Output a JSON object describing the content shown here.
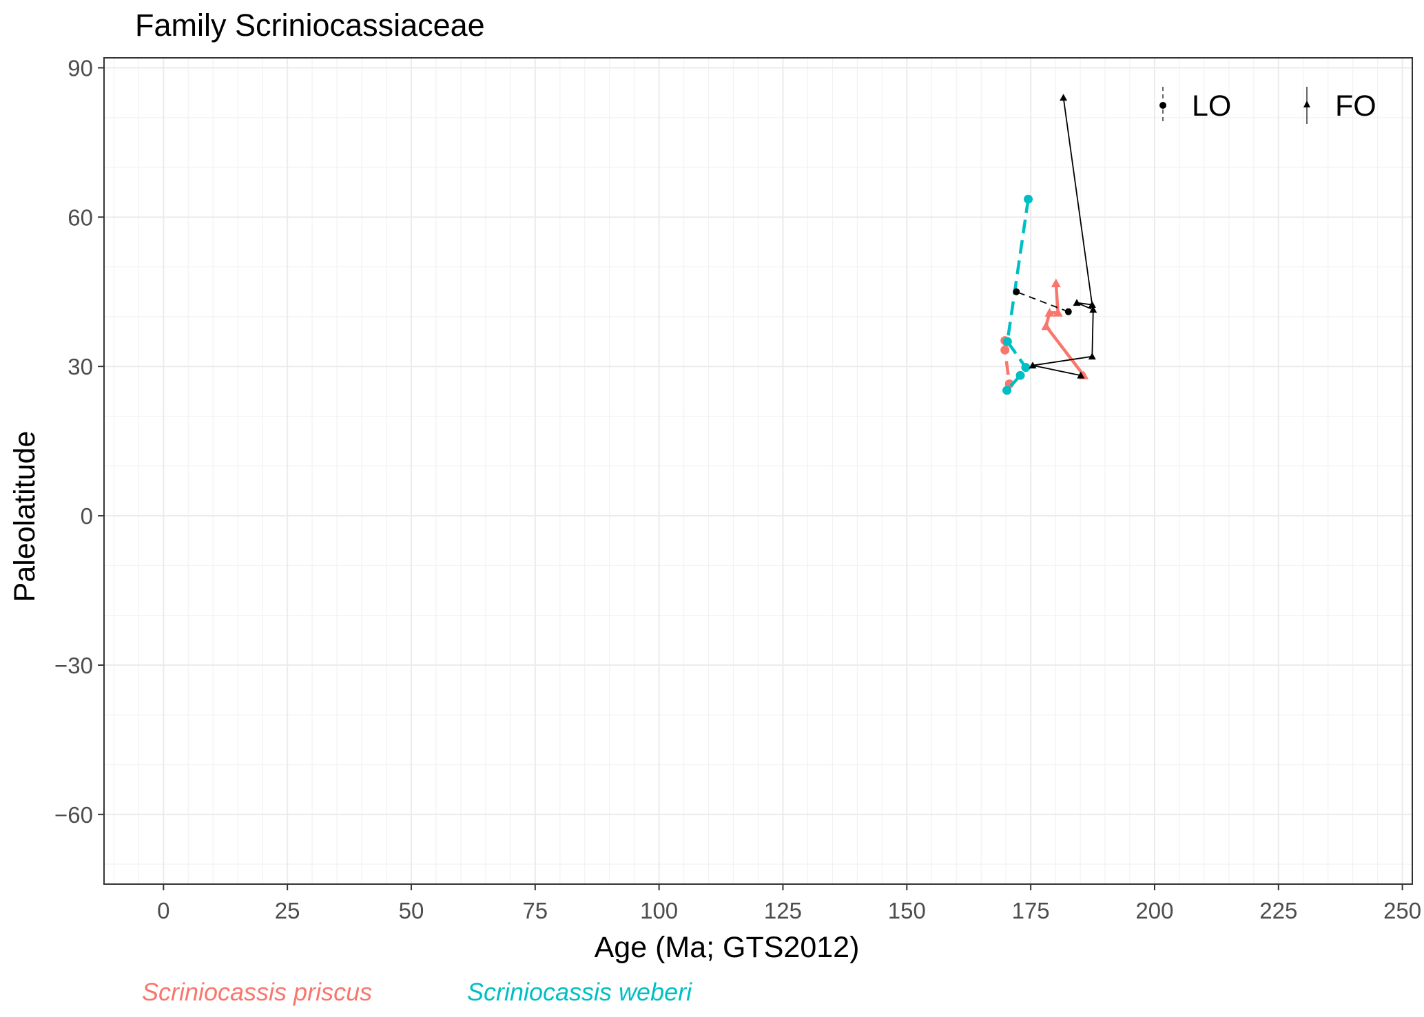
{
  "chart_data": {
    "type": "line",
    "title": "Family Scriniocassiaceae",
    "xlabel": "Age (Ma; GTS2012)",
    "ylabel": "Paleolatitude",
    "xlim": [
      -12,
      252
    ],
    "ylim": [
      -74,
      92
    ],
    "x_ticks": [
      0,
      25,
      50,
      75,
      100,
      125,
      150,
      175,
      200,
      225,
      250
    ],
    "y_ticks": [
      -60,
      -30,
      0,
      30,
      60,
      90
    ],
    "x_tick_labels": [
      "0",
      "25",
      "50",
      "75",
      "100",
      "125",
      "150",
      "175",
      "200",
      "225",
      "250"
    ],
    "y_tick_labels": [
      "−60",
      "−30",
      "0",
      "30",
      "60",
      "90"
    ],
    "grid": true,
    "legend": {
      "placement": "top-right",
      "entries": [
        {
          "label": "LO",
          "marker": "circle",
          "line": "dashed"
        },
        {
          "label": "FO",
          "marker": "triangle",
          "line": "solid"
        }
      ]
    },
    "species_labels": [
      {
        "name": "Scriniocassis priscus",
        "color": "#F8766D"
      },
      {
        "name": "Scriniocassis weberi",
        "color": "#00BFC4"
      }
    ],
    "series": [
      {
        "name": "Scriniocassis priscus",
        "color": "#F8766D",
        "LO": [
          [
            169.8,
            35.2
          ],
          [
            169.8,
            33.3
          ],
          [
            170.7,
            26.5
          ]
        ],
        "FO": [
          [
            185.7,
            28.2
          ],
          [
            178.1,
            38.1
          ],
          [
            178.8,
            40.8
          ],
          [
            180.5,
            40.8
          ],
          [
            180.1,
            46.7
          ]
        ]
      },
      {
        "name": "Scriniocassis weberi",
        "color": "#00BFC4",
        "LO": [
          [
            174.5,
            63.6
          ],
          [
            170.3,
            35.0
          ],
          [
            174.0,
            29.8
          ],
          [
            172.9,
            28.2
          ],
          [
            170.2,
            25.2
          ]
        ],
        "FO": []
      },
      {
        "name": "",
        "color": "#000000",
        "LO": [
          [
            182.6,
            41.0
          ],
          [
            172.1,
            45.0
          ]
        ],
        "FO": [
          [
            181.6,
            84.0
          ],
          [
            187.4,
            42.4
          ],
          [
            184.3,
            42.8
          ],
          [
            187.6,
            41.4
          ],
          [
            187.4,
            32.0
          ],
          [
            175.4,
            30.2
          ],
          [
            185.1,
            28.2
          ]
        ]
      }
    ]
  }
}
